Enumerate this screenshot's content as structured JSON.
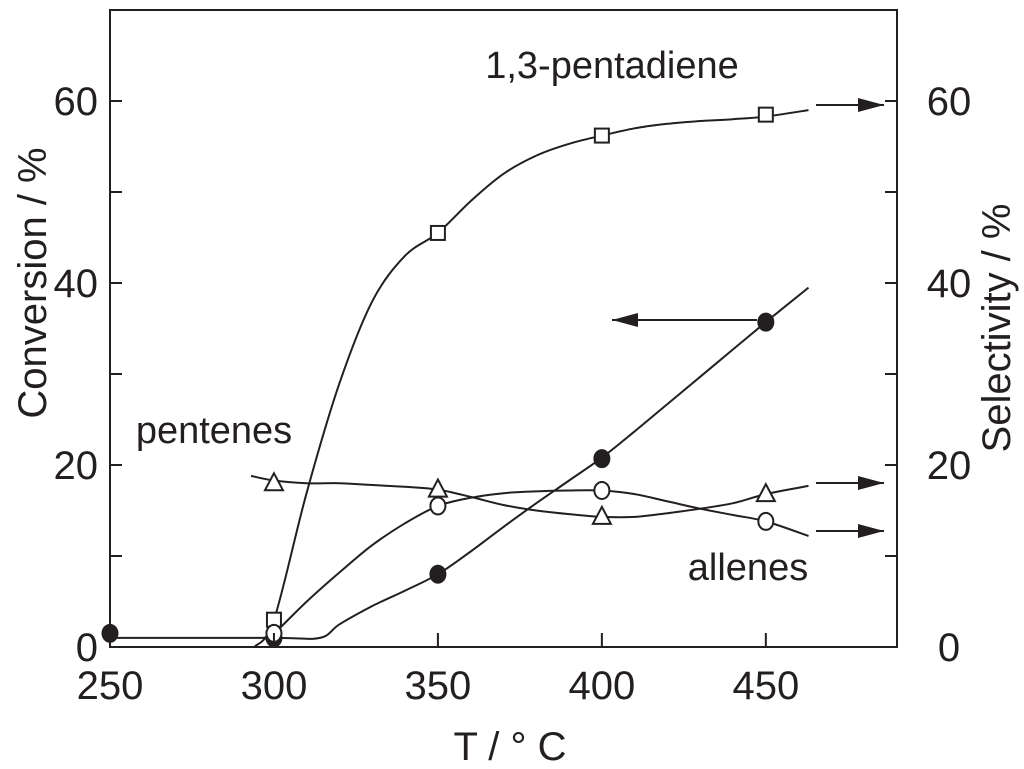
{
  "chart_data": {
    "type": "line",
    "xlabel": "T / °  C",
    "ylabel_left": "Conversion / %",
    "ylabel_right": "Selectivity / %",
    "xlim": [
      250,
      490
    ],
    "ylim": [
      0,
      70
    ],
    "x_ticks": [
      250,
      300,
      350,
      400,
      450
    ],
    "y_ticks": [
      0,
      20,
      40,
      60
    ],
    "y_minor_step": 10,
    "grid": false,
    "legend": "none",
    "series": [
      {
        "name": "1,3-pentadiene",
        "axis": "right",
        "marker": "square-open",
        "x": [
          300,
          350,
          400,
          450
        ],
        "y": [
          3,
          45.5,
          56.2,
          58.5
        ],
        "curve": [
          [
            294,
            0
          ],
          [
            300,
            3
          ],
          [
            310,
            17
          ],
          [
            320,
            29
          ],
          [
            330,
            38
          ],
          [
            340,
            43
          ],
          [
            350,
            45.5
          ],
          [
            360,
            49
          ],
          [
            370,
            52
          ],
          [
            380,
            54
          ],
          [
            390,
            55.3
          ],
          [
            400,
            56.2
          ],
          [
            410,
            57
          ],
          [
            420,
            57.5
          ],
          [
            430,
            57.8
          ],
          [
            440,
            58
          ],
          [
            450,
            58.3
          ],
          [
            463,
            59
          ]
        ]
      },
      {
        "name": "Conversion",
        "axis": "left",
        "marker": "circle-filled",
        "x": [
          250,
          300,
          350,
          400,
          450
        ],
        "y": [
          1.5,
          1,
          8,
          20.7,
          35.7
        ],
        "curve": [
          [
            250,
            1
          ],
          [
            300,
            1
          ],
          [
            314,
            1
          ],
          [
            320,
            2.5
          ],
          [
            330,
            4.5
          ],
          [
            340,
            6.2
          ],
          [
            350,
            8
          ],
          [
            360,
            10.5
          ],
          [
            370,
            13.2
          ],
          [
            380,
            15.8
          ],
          [
            390,
            18.3
          ],
          [
            400,
            20.8
          ],
          [
            410,
            23.7
          ],
          [
            420,
            26.7
          ],
          [
            430,
            29.7
          ],
          [
            440,
            32.7
          ],
          [
            450,
            35.7
          ],
          [
            463,
            39.5
          ]
        ]
      },
      {
        "name": "pentenes",
        "axis": "right",
        "marker": "triangle-open",
        "x": [
          300,
          350,
          400,
          450
        ],
        "y": [
          18,
          17.3,
          14.3,
          16.8
        ],
        "curve": [
          [
            293,
            18.8
          ],
          [
            300,
            18.3
          ],
          [
            310,
            18
          ],
          [
            320,
            18
          ],
          [
            330,
            17.8
          ],
          [
            340,
            17.6
          ],
          [
            350,
            17.3
          ],
          [
            360,
            16.5
          ],
          [
            370,
            15.6
          ],
          [
            380,
            15
          ],
          [
            390,
            14.6
          ],
          [
            400,
            14.3
          ],
          [
            410,
            14.3
          ],
          [
            420,
            14.7
          ],
          [
            430,
            15.2
          ],
          [
            440,
            15.8
          ],
          [
            450,
            16.8
          ],
          [
            463,
            17.7
          ]
        ]
      },
      {
        "name": "allenes",
        "axis": "right",
        "marker": "circle-open",
        "x": [
          300,
          350,
          400,
          450
        ],
        "y": [
          1.5,
          15.5,
          17.2,
          13.8
        ],
        "curve": [
          [
            297,
            1
          ],
          [
            300,
            1.5
          ],
          [
            310,
            5
          ],
          [
            320,
            8.2
          ],
          [
            330,
            11.2
          ],
          [
            340,
            13.6
          ],
          [
            350,
            15.5
          ],
          [
            360,
            16.4
          ],
          [
            370,
            16.9
          ],
          [
            380,
            17.1
          ],
          [
            390,
            17.2
          ],
          [
            400,
            17.2
          ],
          [
            410,
            16.8
          ],
          [
            420,
            16
          ],
          [
            430,
            15.2
          ],
          [
            440,
            14.5
          ],
          [
            450,
            13.8
          ],
          [
            463,
            12.2
          ]
        ]
      }
    ],
    "annotations": [
      {
        "text": "1,3-pentadiene"
      },
      {
        "text": "pentenes"
      },
      {
        "text": "allenes"
      }
    ]
  }
}
